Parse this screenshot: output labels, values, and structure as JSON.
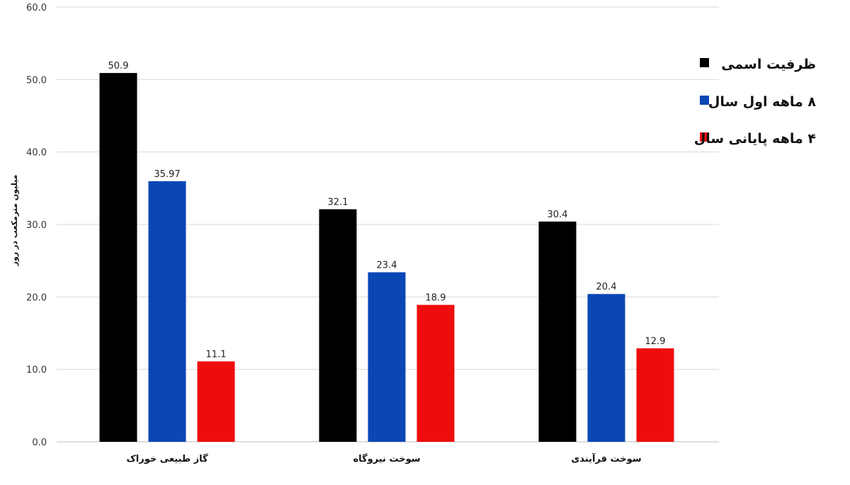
{
  "chart_data": {
    "type": "bar",
    "title": "",
    "xlabel": "",
    "ylabel": "میلیون مترمکعب در روز",
    "ylim": [
      0,
      60
    ],
    "yticks": [
      "0.0",
      "10.0",
      "20.0",
      "30.0",
      "40.0",
      "50.0",
      "60.0"
    ],
    "categories": [
      "گاز طبیعی خوراک",
      "سوخت نیروگاه",
      "سوخت فرآیندی"
    ],
    "series": [
      {
        "name": "ظرفیت اسمی",
        "color": "#000000",
        "values": [
          50.9,
          32.1,
          30.4
        ],
        "labels": [
          "50.9",
          "32.1",
          "30.4"
        ]
      },
      {
        "name": "۸ ماهه اول سال",
        "color": "#0a47b5",
        "values": [
          35.97,
          23.4,
          20.4
        ],
        "labels": [
          "35.97",
          "23.4",
          "20.4"
        ]
      },
      {
        "name": "۴ ماهه پایانی سال",
        "color": "#ee0d0d",
        "values": [
          11.1,
          18.9,
          12.9
        ],
        "labels": [
          "11.1",
          "18.9",
          "12.9"
        ]
      }
    ],
    "grid": true,
    "legend_position": "top-right"
  }
}
